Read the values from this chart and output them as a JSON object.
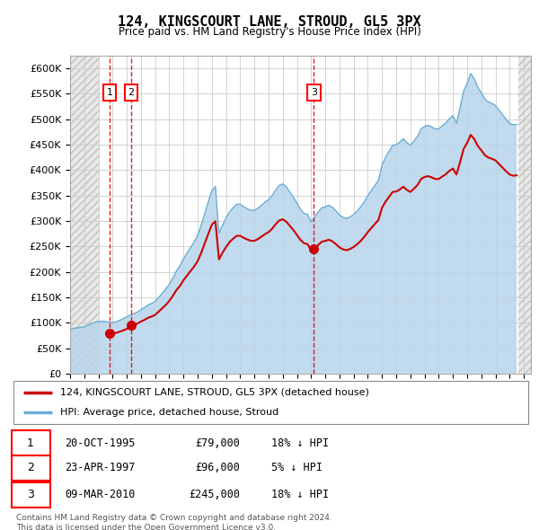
{
  "title": "124, KINGSCOURT LANE, STROUD, GL5 3PX",
  "subtitle": "Price paid vs. HM Land Registry's House Price Index (HPI)",
  "ylim": [
    0,
    625000
  ],
  "yticks": [
    0,
    50000,
    100000,
    150000,
    200000,
    250000,
    300000,
    350000,
    400000,
    450000,
    500000,
    550000,
    600000
  ],
  "xlim_start": 1993.0,
  "xlim_end": 2025.5,
  "legend_line1": "124, KINGSCOURT LANE, STROUD, GL5 3PX (detached house)",
  "legend_line2": "HPI: Average price, detached house, Stroud",
  "sale_points": [
    {
      "year": 1995.79,
      "price": 79000,
      "label": "1"
    },
    {
      "year": 1997.31,
      "price": 96000,
      "label": "2"
    },
    {
      "year": 2010.19,
      "price": 245000,
      "label": "3"
    }
  ],
  "table_rows": [
    {
      "label": "1",
      "date": "20-OCT-1995",
      "price": "£79,000",
      "hpi": "18% ↓ HPI"
    },
    {
      "label": "2",
      "date": "23-APR-1997",
      "price": "£96,000",
      "hpi": "5% ↓ HPI"
    },
    {
      "label": "3",
      "date": "09-MAR-2010",
      "price": "£245,000",
      "hpi": "18% ↓ HPI"
    }
  ],
  "footer": "Contains HM Land Registry data © Crown copyright and database right 2024.\nThis data is licensed under the Open Government Licence v3.0.",
  "hpi_color": "#b8d4ea",
  "hpi_line_color": "#6baed6",
  "price_color": "#cc0000",
  "grid_color": "#cccccc",
  "hpi_data_years": [
    1993.0,
    1993.25,
    1993.5,
    1993.75,
    1994.0,
    1994.25,
    1994.5,
    1994.75,
    1995.0,
    1995.25,
    1995.5,
    1995.75,
    1996.0,
    1996.25,
    1996.5,
    1996.75,
    1997.0,
    1997.25,
    1997.5,
    1997.75,
    1998.0,
    1998.25,
    1998.5,
    1998.75,
    1999.0,
    1999.25,
    1999.5,
    1999.75,
    2000.0,
    2000.25,
    2000.5,
    2000.75,
    2001.0,
    2001.25,
    2001.5,
    2001.75,
    2002.0,
    2002.25,
    2002.5,
    2002.75,
    2003.0,
    2003.25,
    2003.5,
    2003.75,
    2004.0,
    2004.25,
    2004.5,
    2004.75,
    2005.0,
    2005.25,
    2005.5,
    2005.75,
    2006.0,
    2006.25,
    2006.5,
    2006.75,
    2007.0,
    2007.25,
    2007.5,
    2007.75,
    2008.0,
    2008.25,
    2008.5,
    2008.75,
    2009.0,
    2009.25,
    2009.5,
    2009.75,
    2010.0,
    2010.25,
    2010.5,
    2010.75,
    2011.0,
    2011.25,
    2011.5,
    2011.75,
    2012.0,
    2012.25,
    2012.5,
    2012.75,
    2013.0,
    2013.25,
    2013.5,
    2013.75,
    2014.0,
    2014.25,
    2014.5,
    2014.75,
    2015.0,
    2015.25,
    2015.5,
    2015.75,
    2016.0,
    2016.25,
    2016.5,
    2016.75,
    2017.0,
    2017.25,
    2017.5,
    2017.75,
    2018.0,
    2018.25,
    2018.5,
    2018.75,
    2019.0,
    2019.25,
    2019.5,
    2019.75,
    2020.0,
    2020.25,
    2020.5,
    2020.75,
    2021.0,
    2021.25,
    2021.5,
    2021.75,
    2022.0,
    2022.25,
    2022.5,
    2022.75,
    2023.0,
    2023.25,
    2023.5,
    2023.75,
    2024.0,
    2024.25,
    2024.5
  ],
  "hpi_data_values": [
    88000,
    89000,
    90000,
    91000,
    92000,
    95000,
    98000,
    101000,
    102500,
    103000,
    102500,
    101000,
    100500,
    102000,
    105000,
    108000,
    112000,
    115000,
    118000,
    121000,
    126000,
    130000,
    135000,
    138000,
    142000,
    150000,
    158000,
    166000,
    176000,
    188000,
    202000,
    212000,
    226000,
    237000,
    248000,
    259000,
    272000,
    292000,
    315000,
    338000,
    360000,
    368000,
    276000,
    292000,
    306000,
    318000,
    326000,
    333000,
    333000,
    328000,
    324000,
    321000,
    321000,
    325000,
    331000,
    337000,
    342000,
    350000,
    361000,
    370000,
    373000,
    367000,
    357000,
    347000,
    335000,
    323000,
    315000,
    313000,
    298000,
    308000,
    318000,
    326000,
    328000,
    331000,
    327000,
    320000,
    312000,
    307000,
    305000,
    308000,
    313000,
    320000,
    328000,
    338000,
    350000,
    360000,
    370000,
    380000,
    410000,
    425000,
    437000,
    449000,
    450000,
    455000,
    462000,
    454000,
    449000,
    457000,
    466000,
    481000,
    486000,
    488000,
    485000,
    481000,
    481000,
    487000,
    493000,
    501000,
    507000,
    492000,
    522000,
    555000,
    570000,
    590000,
    580000,
    563000,
    552000,
    540000,
    534000,
    531000,
    527000,
    518000,
    509000,
    500000,
    492000,
    489000,
    490000
  ]
}
